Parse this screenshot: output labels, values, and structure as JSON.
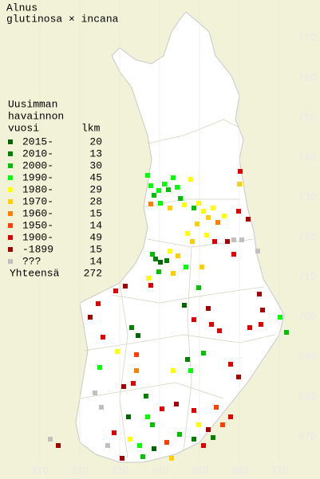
{
  "title": [
    "Alnus",
    "glutinosa × incana"
  ],
  "legend": {
    "header": [
      "Uusimman",
      "havainnon",
      "vuosi"
    ],
    "count_header": "lkm",
    "rows": [
      {
        "label": "2015-",
        "count": 20,
        "color": "#006400"
      },
      {
        "label": "2010-",
        "count": 13,
        "color": "#008000"
      },
      {
        "label": "2000-",
        "count": 30,
        "color": "#00c000"
      },
      {
        "label": "1990-",
        "count": 45,
        "color": "#00ff00"
      },
      {
        "label": "1980-",
        "count": 29,
        "color": "#ffff00"
      },
      {
        "label": "1970-",
        "count": 28,
        "color": "#ffd000"
      },
      {
        "label": "1960-",
        "count": 15,
        "color": "#ff8000"
      },
      {
        "label": "1950-",
        "count": 14,
        "color": "#ff4000"
      },
      {
        "label": "1900-",
        "count": 49,
        "color": "#e00000"
      },
      {
        "label": "-1899",
        "count": 15,
        "color": "#a00000"
      },
      {
        "label": "???",
        "count": 14,
        "color": "#c0c0c0"
      }
    ],
    "total": {
      "label": "Yhteensä",
      "count": 272
    }
  },
  "x_labels": [
    310,
    320,
    330,
    340,
    350,
    360,
    370
  ],
  "y_labels": [
    770,
    760,
    750,
    740,
    730,
    720,
    710,
    700,
    690,
    680,
    670
  ]
}
